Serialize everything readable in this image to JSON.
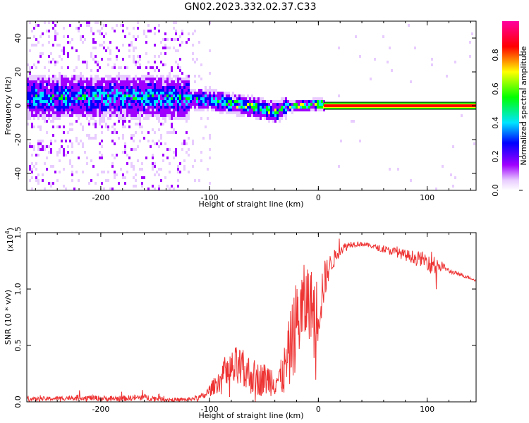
{
  "title": "GN02.2023.332.02.37.C33",
  "chart_data": [
    {
      "type": "heatmap",
      "name": "spectrogram",
      "xlabel": "Height of straight line (km)",
      "ylabel": "Frequency (Hz)",
      "xlim": [
        -268,
        145
      ],
      "ylim": [
        -50,
        50
      ],
      "xticks": [
        -200,
        -100,
        0,
        100
      ],
      "xtick_labels": [
        "-200",
        "-100",
        "0",
        "100"
      ],
      "yticks": [
        -40,
        -20,
        0,
        20,
        40
      ],
      "ytick_labels": [
        "-40",
        "-20",
        "0",
        "20",
        "40"
      ],
      "colorbar": {
        "label": "Normalized spectral amplitude",
        "ticks": [
          0.0,
          0.2,
          0.4,
          0.6,
          0.8
        ],
        "tick_labels": [
          "0.0",
          "0.2",
          "0.4",
          "0.6",
          "0.8"
        ],
        "range": [
          0,
          1
        ],
        "colors": [
          "#e8ccff",
          "#a000ff",
          "#0000ff",
          "#00e5ff",
          "#00ff00",
          "#ffff00",
          "#ff0000",
          "#ff00a0"
        ]
      },
      "ridge": {
        "x": [
          -268,
          -200,
          -150,
          -120,
          -100,
          -80,
          -60,
          -40,
          -30,
          -20,
          -10,
          0,
          10,
          145
        ],
        "freq": [
          6,
          6,
          6,
          5,
          4,
          2,
          0,
          -3,
          0,
          1,
          1,
          2,
          0,
          0
        ]
      },
      "carrier_band": {
        "x_start": 5,
        "x_end": 145,
        "freq": 0
      }
    },
    {
      "type": "line",
      "name": "snr",
      "xlabel": "Height of straight line (km)",
      "ylabel": "SNR (10 * v/v)",
      "yscale_label": "(x10",
      "yscale_exp": "4",
      "yscale_close": ")",
      "xlim": [
        -268,
        145
      ],
      "ylim": [
        0,
        15000
      ],
      "xticks": [
        -200,
        -100,
        0,
        100
      ],
      "xtick_labels": [
        "-200",
        "-100",
        "0",
        "100"
      ],
      "yticks": [
        0,
        5000,
        10000,
        15000
      ],
      "ytick_labels": [
        "0.0",
        "0.5",
        "1.0",
        "1.5"
      ],
      "color": "#ee3333",
      "x": [
        -268,
        -240,
        -220,
        -200,
        -180,
        -160,
        -140,
        -120,
        -105,
        -95,
        -85,
        -75,
        -65,
        -55,
        -45,
        -35,
        -30,
        -25,
        -20,
        -15,
        -10,
        -5,
        0,
        5,
        10,
        20,
        30,
        40,
        50,
        60,
        70,
        80,
        90,
        100,
        105,
        110,
        115,
        120,
        130,
        145
      ],
      "y": [
        200,
        300,
        400,
        300,
        300,
        400,
        200,
        200,
        500,
        1500,
        2500,
        3000,
        2500,
        2000,
        2000,
        2000,
        3000,
        5000,
        7000,
        8000,
        9000,
        8500,
        8000,
        10500,
        12000,
        13500,
        14000,
        14000,
        13800,
        13500,
        13300,
        13000,
        12800,
        12500,
        12300,
        12200,
        12000,
        11600,
        11300,
        10800
      ],
      "noise": [
        200,
        200,
        250,
        250,
        250,
        300,
        200,
        150,
        300,
        800,
        1500,
        2000,
        1800,
        1500,
        1500,
        1500,
        2500,
        3500,
        4000,
        4000,
        3500,
        3000,
        3000,
        2000,
        1000,
        500,
        300,
        200,
        200,
        300,
        400,
        500,
        600,
        700,
        1200,
        1000,
        300,
        200,
        150,
        150
      ]
    }
  ]
}
